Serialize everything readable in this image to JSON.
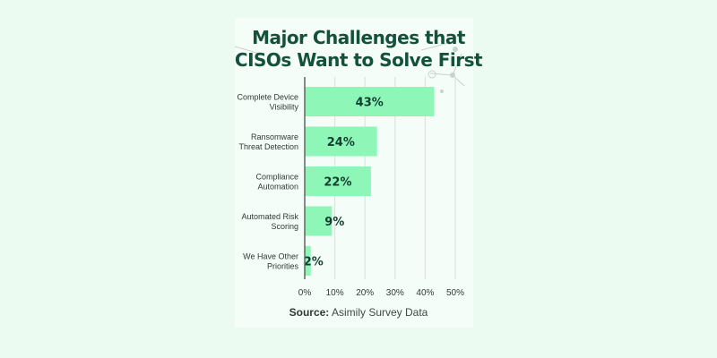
{
  "title_line1": "Major Challenges that",
  "title_line2": "CISOs Want to Solve First",
  "source_label": "Source:",
  "source_text": "Asimily Survey Data",
  "colors": {
    "background": "#ebfbf1",
    "bar": "#8ef7b8",
    "title": "#14513c",
    "value_label": "#123e30",
    "axis": "#5a6a64",
    "grid": "#d9e0dc",
    "text": "#2f3a36"
  },
  "chart_data": {
    "type": "bar",
    "orientation": "horizontal",
    "title": "Major Challenges that CISOs Want to Solve First",
    "categories": [
      [
        "Complete Device",
        "Visibility"
      ],
      [
        "Ransomware",
        "Threat Detection"
      ],
      [
        "Compliance",
        "Automation"
      ],
      [
        "Automated Risk",
        "Scoring"
      ],
      [
        "We Have Other",
        "Priorities"
      ]
    ],
    "values": [
      43,
      24,
      22,
      9,
      2
    ],
    "value_labels": [
      "43%",
      "24%",
      "22%",
      "9%",
      "2%"
    ],
    "xlim": [
      0,
      50
    ],
    "xticks": [
      0,
      10,
      20,
      30,
      40,
      50
    ],
    "xtick_labels": [
      "0%",
      "10%",
      "20%",
      "30%",
      "40%",
      "50%"
    ],
    "grid": "vertical"
  }
}
